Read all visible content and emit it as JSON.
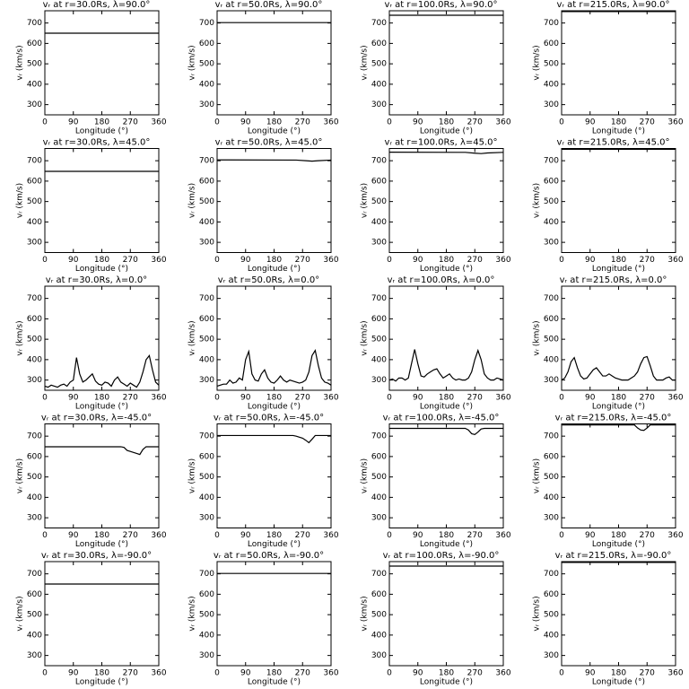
{
  "chart_data": [
    {
      "type": "line",
      "title": "vᵣ at r=30.0Rs, λ=90.0°",
      "xlabel": "Longitude (°)",
      "ylabel": "vᵣ (km/s)",
      "x": [
        0,
        360
      ],
      "series": [
        {
          "color": "#000000",
          "values": [
            650,
            650
          ]
        }
      ],
      "xlim": [
        0,
        360
      ],
      "ylim": [
        250,
        760
      ],
      "xticks": [
        0,
        90,
        180,
        270,
        360
      ],
      "yticks": [
        300,
        400,
        500,
        600,
        700
      ]
    },
    {
      "type": "line",
      "title": "vᵣ at r=50.0Rs, λ=90.0°",
      "xlabel": "Longitude (°)",
      "ylabel": "vᵣ (km/s)",
      "x": [
        0,
        360
      ],
      "series": [
        {
          "color": "#000000",
          "values": [
            702,
            702
          ]
        }
      ],
      "xlim": [
        0,
        360
      ],
      "ylim": [
        250,
        760
      ],
      "xticks": [
        0,
        90,
        180,
        270,
        360
      ],
      "yticks": [
        300,
        400,
        500,
        600,
        700
      ]
    },
    {
      "type": "line",
      "title": "vᵣ at r=100.0Rs, λ=90.0°",
      "xlabel": "Longitude (°)",
      "ylabel": "vᵣ (km/s)",
      "x": [
        0,
        360
      ],
      "series": [
        {
          "color": "#000000",
          "values": [
            738,
            738
          ]
        }
      ],
      "xlim": [
        0,
        360
      ],
      "ylim": [
        250,
        760
      ],
      "xticks": [
        0,
        90,
        180,
        270,
        360
      ],
      "yticks": [
        300,
        400,
        500,
        600,
        700
      ]
    },
    {
      "type": "line",
      "title": "vᵣ at r=215.0Rs, λ=90.0°",
      "xlabel": "Longitude (°)",
      "ylabel": "vᵣ (km/s)",
      "x": [
        0,
        360
      ],
      "series": [
        {
          "color": "#000000",
          "values": [
            756,
            756
          ]
        }
      ],
      "xlim": [
        0,
        360
      ],
      "ylim": [
        250,
        760
      ],
      "xticks": [
        0,
        90,
        180,
        270,
        360
      ],
      "yticks": [
        300,
        400,
        500,
        600,
        700
      ]
    },
    {
      "type": "line",
      "title": "vᵣ at r=30.0Rs, λ=45.0°",
      "xlabel": "Longitude (°)",
      "ylabel": "vᵣ (km/s)",
      "x": [
        0,
        360
      ],
      "series": [
        {
          "color": "#000000",
          "values": [
            648,
            648
          ]
        }
      ],
      "xlim": [
        0,
        360
      ],
      "ylim": [
        250,
        760
      ],
      "xticks": [
        0,
        90,
        180,
        270,
        360
      ],
      "yticks": [
        300,
        400,
        500,
        600,
        700
      ]
    },
    {
      "type": "line",
      "title": "vᵣ at r=50.0Rs, λ=45.0°",
      "xlabel": "Longitude (°)",
      "ylabel": "vᵣ (km/s)",
      "x": [
        0,
        250,
        280,
        300,
        320,
        360
      ],
      "series": [
        {
          "color": "#000000",
          "values": [
            704,
            703,
            700,
            698,
            700,
            703
          ]
        }
      ],
      "xlim": [
        0,
        360
      ],
      "ylim": [
        250,
        760
      ],
      "xticks": [
        0,
        90,
        180,
        270,
        360
      ],
      "yticks": [
        300,
        400,
        500,
        600,
        700
      ]
    },
    {
      "type": "line",
      "title": "vᵣ at r=100.0Rs, λ=45.0°",
      "xlabel": "Longitude (°)",
      "ylabel": "vᵣ (km/s)",
      "x": [
        0,
        240,
        270,
        290,
        310,
        360
      ],
      "series": [
        {
          "color": "#000000",
          "values": [
            742,
            741,
            737,
            735,
            738,
            741
          ]
        }
      ],
      "xlim": [
        0,
        360
      ],
      "ylim": [
        250,
        760
      ],
      "xticks": [
        0,
        90,
        180,
        270,
        360
      ],
      "yticks": [
        300,
        400,
        500,
        600,
        700
      ]
    },
    {
      "type": "line",
      "title": "vᵣ at r=215.0Rs, λ=45.0°",
      "xlabel": "Longitude (°)",
      "ylabel": "vᵣ (km/s)",
      "x": [
        0,
        360
      ],
      "series": [
        {
          "color": "#000000",
          "values": [
            756,
            756
          ]
        }
      ],
      "xlim": [
        0,
        360
      ],
      "ylim": [
        250,
        760
      ],
      "xticks": [
        0,
        90,
        180,
        270,
        360
      ],
      "yticks": [
        300,
        400,
        500,
        600,
        700
      ]
    },
    {
      "type": "line",
      "title": "vᵣ at r=30.0Rs, λ=0.0°",
      "xlabel": "Longitude (°)",
      "ylabel": "vᵣ (km/s)",
      "x": [
        0,
        10,
        20,
        30,
        40,
        50,
        60,
        70,
        80,
        90,
        100,
        110,
        120,
        130,
        140,
        150,
        160,
        170,
        180,
        190,
        200,
        210,
        220,
        230,
        240,
        250,
        260,
        270,
        280,
        290,
        300,
        310,
        320,
        330,
        340,
        350,
        360
      ],
      "series": [
        {
          "color": "#000000",
          "values": [
            270,
            265,
            275,
            270,
            265,
            275,
            280,
            270,
            290,
            300,
            410,
            330,
            290,
            300,
            315,
            330,
            295,
            280,
            275,
            290,
            285,
            270,
            300,
            315,
            290,
            280,
            270,
            285,
            275,
            265,
            290,
            340,
            400,
            420,
            350,
            290,
            275
          ]
        }
      ],
      "xlim": [
        0,
        360
      ],
      "ylim": [
        250,
        760
      ],
      "xticks": [
        0,
        90,
        180,
        270,
        360
      ],
      "yticks": [
        300,
        400,
        500,
        600,
        700
      ]
    },
    {
      "type": "line",
      "title": "vᵣ at r=50.0Rs, λ=0.0°",
      "xlabel": "Longitude (°)",
      "ylabel": "vᵣ (km/s)",
      "x": [
        0,
        10,
        20,
        30,
        40,
        50,
        60,
        70,
        80,
        90,
        100,
        110,
        120,
        130,
        140,
        150,
        160,
        170,
        180,
        190,
        200,
        210,
        220,
        230,
        240,
        250,
        260,
        270,
        280,
        290,
        300,
        310,
        320,
        330,
        340,
        350,
        360
      ],
      "series": [
        {
          "color": "#000000",
          "values": [
            270,
            275,
            280,
            280,
            300,
            285,
            290,
            310,
            300,
            400,
            440,
            330,
            300,
            295,
            330,
            350,
            310,
            290,
            285,
            300,
            320,
            300,
            290,
            300,
            295,
            290,
            285,
            290,
            300,
            340,
            420,
            445,
            370,
            310,
            290,
            285,
            275
          ]
        }
      ],
      "xlim": [
        0,
        360
      ],
      "ylim": [
        250,
        760
      ],
      "xticks": [
        0,
        90,
        180,
        270,
        360
      ],
      "yticks": [
        300,
        400,
        500,
        600,
        700
      ]
    },
    {
      "type": "line",
      "title": "vᵣ at r=100.0Rs, λ=0.0°",
      "xlabel": "Longitude (°)",
      "ylabel": "vᵣ (km/s)",
      "x": [
        0,
        10,
        20,
        30,
        40,
        50,
        60,
        70,
        80,
        90,
        100,
        110,
        120,
        130,
        140,
        150,
        160,
        170,
        180,
        190,
        200,
        210,
        220,
        230,
        240,
        250,
        260,
        270,
        280,
        290,
        300,
        310,
        320,
        330,
        340,
        350,
        360
      ],
      "series": [
        {
          "color": "#000000",
          "values": [
            300,
            305,
            295,
            310,
            310,
            300,
            310,
            380,
            450,
            380,
            320,
            315,
            330,
            340,
            350,
            355,
            330,
            310,
            320,
            330,
            310,
            300,
            305,
            300,
            300,
            310,
            340,
            400,
            445,
            400,
            330,
            310,
            300,
            300,
            310,
            305,
            300
          ]
        }
      ],
      "xlim": [
        0,
        360
      ],
      "ylim": [
        250,
        760
      ],
      "xticks": [
        0,
        90,
        180,
        270,
        360
      ],
      "yticks": [
        300,
        400,
        500,
        600,
        700
      ]
    },
    {
      "type": "line",
      "title": "vᵣ at r=215.0Rs, λ=0.0°",
      "xlabel": "Longitude (°)",
      "ylabel": "vᵣ (km/s)",
      "x": [
        0,
        10,
        20,
        30,
        40,
        50,
        60,
        70,
        80,
        90,
        100,
        110,
        120,
        130,
        140,
        150,
        160,
        170,
        180,
        190,
        200,
        210,
        220,
        230,
        240,
        250,
        260,
        270,
        280,
        290,
        300,
        310,
        320,
        330,
        340,
        350,
        360
      ],
      "series": [
        {
          "color": "#000000",
          "values": [
            300,
            310,
            340,
            390,
            410,
            360,
            320,
            305,
            310,
            330,
            350,
            360,
            340,
            320,
            320,
            330,
            320,
            310,
            305,
            300,
            300,
            300,
            310,
            320,
            340,
            380,
            410,
            415,
            370,
            320,
            300,
            300,
            300,
            310,
            315,
            300,
            300
          ]
        }
      ],
      "xlim": [
        0,
        360
      ],
      "ylim": [
        250,
        760
      ],
      "xticks": [
        0,
        90,
        180,
        270,
        360
      ],
      "yticks": [
        300,
        400,
        500,
        600,
        700
      ]
    },
    {
      "type": "line",
      "title": "vᵣ at r=30.0Rs, λ=-45.0°",
      "xlabel": "Longitude (°)",
      "ylabel": "vᵣ (km/s)",
      "x": [
        0,
        240,
        250,
        260,
        270,
        280,
        290,
        300,
        310,
        320,
        360
      ],
      "series": [
        {
          "color": "#000000",
          "values": [
            648,
            648,
            645,
            630,
            625,
            620,
            615,
            610,
            635,
            648,
            648
          ]
        }
      ],
      "xlim": [
        0,
        360
      ],
      "ylim": [
        250,
        760
      ],
      "xticks": [
        0,
        90,
        180,
        270,
        360
      ],
      "yticks": [
        300,
        400,
        500,
        600,
        700
      ]
    },
    {
      "type": "line",
      "title": "vᵣ at r=50.0Rs, λ=-45.0°",
      "xlabel": "Longitude (°)",
      "ylabel": "vᵣ (km/s)",
      "x": [
        0,
        240,
        250,
        260,
        270,
        280,
        290,
        300,
        310,
        360
      ],
      "series": [
        {
          "color": "#000000",
          "values": [
            703,
            703,
            700,
            695,
            690,
            680,
            668,
            685,
            703,
            703
          ]
        }
      ],
      "xlim": [
        0,
        360
      ],
      "ylim": [
        250,
        760
      ],
      "xticks": [
        0,
        90,
        180,
        270,
        360
      ],
      "yticks": [
        300,
        400,
        500,
        600,
        700
      ]
    },
    {
      "type": "line",
      "title": "vᵣ at r=100.0Rs, λ=-45.0°",
      "xlabel": "Longitude (°)",
      "ylabel": "vᵣ (km/s)",
      "x": [
        0,
        240,
        250,
        260,
        270,
        280,
        290,
        300,
        360
      ],
      "series": [
        {
          "color": "#000000",
          "values": [
            738,
            738,
            730,
            712,
            708,
            720,
            735,
            738,
            738
          ]
        }
      ],
      "xlim": [
        0,
        360
      ],
      "ylim": [
        250,
        760
      ],
      "xticks": [
        0,
        90,
        180,
        270,
        360
      ],
      "yticks": [
        300,
        400,
        500,
        600,
        700
      ]
    },
    {
      "type": "line",
      "title": "vᵣ at r=215.0Rs, λ=-45.0°",
      "xlabel": "Longitude (°)",
      "ylabel": "vᵣ (km/s)",
      "x": [
        0,
        230,
        240,
        250,
        260,
        270,
        280,
        360
      ],
      "series": [
        {
          "color": "#000000",
          "values": [
            755,
            755,
            740,
            730,
            728,
            740,
            755,
            755
          ]
        }
      ],
      "xlim": [
        0,
        360
      ],
      "ylim": [
        250,
        760
      ],
      "xticks": [
        0,
        90,
        180,
        270,
        360
      ],
      "yticks": [
        300,
        400,
        500,
        600,
        700
      ]
    },
    {
      "type": "line",
      "title": "vᵣ at r=30.0Rs, λ=-90.0°",
      "xlabel": "Longitude (°)",
      "ylabel": "vᵣ (km/s)",
      "x": [
        0,
        360
      ],
      "series": [
        {
          "color": "#000000",
          "values": [
            650,
            650
          ]
        }
      ],
      "xlim": [
        0,
        360
      ],
      "ylim": [
        250,
        760
      ],
      "xticks": [
        0,
        90,
        180,
        270,
        360
      ],
      "yticks": [
        300,
        400,
        500,
        600,
        700
      ]
    },
    {
      "type": "line",
      "title": "vᵣ at r=50.0Rs, λ=-90.0°",
      "xlabel": "Longitude (°)",
      "ylabel": "vᵣ (km/s)",
      "x": [
        0,
        360
      ],
      "series": [
        {
          "color": "#000000",
          "values": [
            702,
            702
          ]
        }
      ],
      "xlim": [
        0,
        360
      ],
      "ylim": [
        250,
        760
      ],
      "xticks": [
        0,
        90,
        180,
        270,
        360
      ],
      "yticks": [
        300,
        400,
        500,
        600,
        700
      ]
    },
    {
      "type": "line",
      "title": "vᵣ at r=100.0Rs, λ=-90.0°",
      "xlabel": "Longitude (°)",
      "ylabel": "vᵣ (km/s)",
      "x": [
        0,
        360
      ],
      "series": [
        {
          "color": "#000000",
          "values": [
            738,
            738
          ]
        }
      ],
      "xlim": [
        0,
        360
      ],
      "ylim": [
        250,
        760
      ],
      "xticks": [
        0,
        90,
        180,
        270,
        360
      ],
      "yticks": [
        300,
        400,
        500,
        600,
        700
      ]
    },
    {
      "type": "line",
      "title": "vᵣ at r=215.0Rs, λ=-90.0°",
      "xlabel": "Longitude (°)",
      "ylabel": "vᵣ (km/s)",
      "x": [
        0,
        360
      ],
      "series": [
        {
          "color": "#000000",
          "values": [
            756,
            756
          ]
        }
      ],
      "xlim": [
        0,
        360
      ],
      "ylim": [
        250,
        760
      ],
      "xticks": [
        0,
        90,
        180,
        270,
        360
      ],
      "yticks": [
        300,
        400,
        500,
        600,
        700
      ]
    }
  ]
}
